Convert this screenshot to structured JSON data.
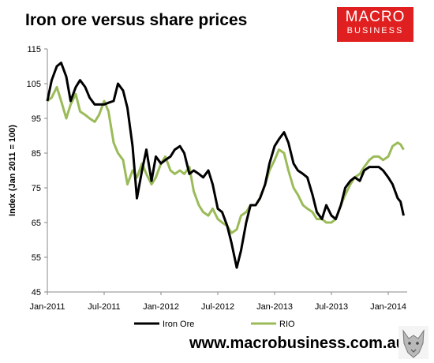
{
  "header": {
    "title": "Iron ore versus share prices",
    "logo_line1": "MACRO",
    "logo_line2": "BUSINESS"
  },
  "footer": {
    "url": "www.macrobusiness.com.au"
  },
  "colors": {
    "iron_ore": "#000000",
    "rio": "#9bbb59",
    "logo_bg": "#e02020"
  },
  "chart_data": {
    "type": "line",
    "title": "Iron ore versus share prices",
    "ylabel": "Index (Jan 2011 = 100)",
    "xlabel": "",
    "ylim": [
      45,
      115
    ],
    "xlim": [
      "2011-01",
      "2014-03"
    ],
    "yticks": [
      "45",
      "55",
      "65",
      "75",
      "85",
      "95",
      "105",
      "115"
    ],
    "xticks": [
      "Jan-2011",
      "Jul-2011",
      "Jan-2012",
      "Jul-2012",
      "Jan-2013",
      "Jul-2013",
      "Jan-2014"
    ],
    "grid": false,
    "legend": "bottom",
    "series": [
      {
        "name": "Iron Ore",
        "points": [
          [
            "2011-01",
            100
          ],
          [
            "2011-01-15",
            106
          ],
          [
            "2011-02",
            110
          ],
          [
            "2011-02-15",
            111
          ],
          [
            "2011-03",
            107
          ],
          [
            "2011-03-15",
            100
          ],
          [
            "2011-04",
            104
          ],
          [
            "2011-04-15",
            106
          ],
          [
            "2011-05",
            104
          ],
          [
            "2011-05-15",
            101
          ],
          [
            "2011-06",
            99
          ],
          [
            "2011-06-15",
            99
          ],
          [
            "2011-07",
            99
          ],
          [
            "2011-07-15",
            99.5
          ],
          [
            "2011-08",
            100
          ],
          [
            "2011-08-15",
            105
          ],
          [
            "2011-09",
            103
          ],
          [
            "2011-09-15",
            98
          ],
          [
            "2011-10",
            87
          ],
          [
            "2011-10-15",
            72
          ],
          [
            "2011-11",
            80
          ],
          [
            "2011-11-15",
            86
          ],
          [
            "2011-12",
            77
          ],
          [
            "2011-12-15",
            84
          ],
          [
            "2012-01",
            82
          ],
          [
            "2012-01-15",
            83
          ],
          [
            "2012-02",
            84
          ],
          [
            "2012-02-15",
            86
          ],
          [
            "2012-03",
            87
          ],
          [
            "2012-03-15",
            85
          ],
          [
            "2012-04",
            79
          ],
          [
            "2012-04-15",
            80
          ],
          [
            "2012-05",
            79
          ],
          [
            "2012-05-15",
            78
          ],
          [
            "2012-06",
            80
          ],
          [
            "2012-06-15",
            76
          ],
          [
            "2012-07",
            69
          ],
          [
            "2012-07-15",
            68
          ],
          [
            "2012-08",
            64
          ],
          [
            "2012-08-15",
            59
          ],
          [
            "2012-09",
            52
          ],
          [
            "2012-09-15",
            57
          ],
          [
            "2012-10",
            65
          ],
          [
            "2012-10-15",
            70
          ],
          [
            "2012-11",
            70
          ],
          [
            "2012-11-15",
            72
          ],
          [
            "2012-12",
            76
          ],
          [
            "2012-12-15",
            82
          ],
          [
            "2013-01",
            87
          ],
          [
            "2013-01-15",
            89
          ],
          [
            "2013-02",
            91
          ],
          [
            "2013-02-15",
            88
          ],
          [
            "2013-03",
            82
          ],
          [
            "2013-03-15",
            80
          ],
          [
            "2013-04",
            79
          ],
          [
            "2013-04-15",
            78
          ],
          [
            "2013-05",
            73
          ],
          [
            "2013-05-15",
            68
          ],
          [
            "2013-06",
            66
          ],
          [
            "2013-06-15",
            70
          ],
          [
            "2013-07",
            67
          ],
          [
            "2013-07-15",
            66
          ],
          [
            "2013-08",
            70
          ],
          [
            "2013-08-15",
            75
          ],
          [
            "2013-09",
            77
          ],
          [
            "2013-09-15",
            78
          ],
          [
            "2013-10",
            77
          ],
          [
            "2013-10-15",
            80
          ],
          [
            "2013-11",
            81
          ],
          [
            "2013-11-15",
            81
          ],
          [
            "2013-12",
            81
          ],
          [
            "2013-12-15",
            80
          ],
          [
            "2014-01",
            78
          ],
          [
            "2014-01-15",
            76
          ],
          [
            "2014-02",
            72
          ],
          [
            "2014-02-10",
            71
          ],
          [
            "2014-02-20",
            67
          ]
        ]
      },
      {
        "name": "RIO",
        "points": [
          [
            "2011-01",
            100
          ],
          [
            "2011-01-15",
            101
          ],
          [
            "2011-02",
            104
          ],
          [
            "2011-02-15",
            100
          ],
          [
            "2011-03",
            95
          ],
          [
            "2011-03-15",
            99
          ],
          [
            "2011-04",
            102
          ],
          [
            "2011-04-15",
            97
          ],
          [
            "2011-05",
            96
          ],
          [
            "2011-05-15",
            95
          ],
          [
            "2011-06",
            94
          ],
          [
            "2011-06-15",
            96
          ],
          [
            "2011-07",
            100
          ],
          [
            "2011-07-15",
            97
          ],
          [
            "2011-08",
            88
          ],
          [
            "2011-08-15",
            85
          ],
          [
            "2011-09",
            83
          ],
          [
            "2011-09-15",
            76
          ],
          [
            "2011-10",
            80
          ],
          [
            "2011-10-15",
            78
          ],
          [
            "2011-11",
            82
          ],
          [
            "2011-11-15",
            79
          ],
          [
            "2011-12",
            76
          ],
          [
            "2011-12-15",
            78
          ],
          [
            "2012-01",
            82
          ],
          [
            "2012-01-15",
            84
          ],
          [
            "2012-02",
            80
          ],
          [
            "2012-02-15",
            79
          ],
          [
            "2012-03",
            80
          ],
          [
            "2012-03-15",
            79
          ],
          [
            "2012-04",
            81
          ],
          [
            "2012-04-15",
            74
          ],
          [
            "2012-05",
            70
          ],
          [
            "2012-05-15",
            68
          ],
          [
            "2012-06",
            67
          ],
          [
            "2012-06-15",
            69
          ],
          [
            "2012-07",
            66
          ],
          [
            "2012-07-15",
            65
          ],
          [
            "2012-08",
            64
          ],
          [
            "2012-08-15",
            62
          ],
          [
            "2012-09",
            63
          ],
          [
            "2012-09-15",
            67
          ],
          [
            "2012-10",
            68
          ],
          [
            "2012-10-15",
            70
          ],
          [
            "2012-11",
            70
          ],
          [
            "2012-11-15",
            72
          ],
          [
            "2012-12",
            76
          ],
          [
            "2012-12-15",
            80
          ],
          [
            "2013-01",
            83
          ],
          [
            "2013-01-15",
            86
          ],
          [
            "2013-02",
            85
          ],
          [
            "2013-02-15",
            80
          ],
          [
            "2013-03",
            75
          ],
          [
            "2013-03-15",
            73
          ],
          [
            "2013-04",
            70
          ],
          [
            "2013-04-15",
            69
          ],
          [
            "2013-05",
            68
          ],
          [
            "2013-05-15",
            66
          ],
          [
            "2013-06",
            66
          ],
          [
            "2013-06-15",
            65
          ],
          [
            "2013-07",
            65
          ],
          [
            "2013-07-15",
            66
          ],
          [
            "2013-08",
            70
          ],
          [
            "2013-08-15",
            73
          ],
          [
            "2013-09",
            76
          ],
          [
            "2013-09-15",
            78
          ],
          [
            "2013-10",
            79
          ],
          [
            "2013-10-15",
            81
          ],
          [
            "2013-11",
            83
          ],
          [
            "2013-11-15",
            84
          ],
          [
            "2013-12",
            84
          ],
          [
            "2013-12-15",
            83
          ],
          [
            "2014-01",
            84
          ],
          [
            "2014-01-15",
            87
          ],
          [
            "2014-02",
            88
          ],
          [
            "2014-02-10",
            87.5
          ],
          [
            "2014-02-20",
            86
          ]
        ]
      }
    ]
  }
}
